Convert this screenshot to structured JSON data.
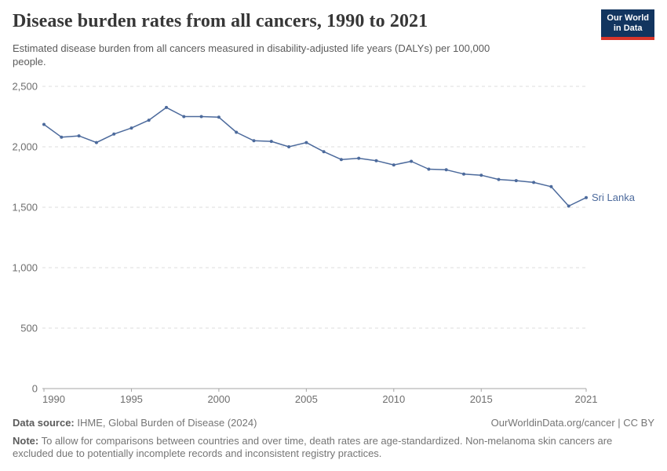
{
  "header": {
    "title": "Disease burden rates from all cancers, 1990 to 2021",
    "subtitle_line1": "Estimated disease burden from all cancers measured in disability-adjusted life years (DALYs) per 100,000",
    "subtitle_line2": "people.",
    "logo": {
      "line1": "Our World",
      "line2": "in Data",
      "bg_color": "#12355f",
      "accent_color": "#d8352a"
    }
  },
  "chart_data": {
    "type": "line",
    "title": "Disease burden rates from all cancers, 1990 to 2021",
    "xlabel": "",
    "ylabel": "DALYs per 100,000 people",
    "x": [
      1990,
      1991,
      1992,
      1993,
      1994,
      1995,
      1996,
      1997,
      1998,
      1999,
      2000,
      2001,
      2002,
      2003,
      2004,
      2005,
      2006,
      2007,
      2008,
      2009,
      2010,
      2011,
      2012,
      2013,
      2014,
      2015,
      2016,
      2017,
      2018,
      2019,
      2020,
      2021
    ],
    "series": [
      {
        "name": "Sri Lanka",
        "color": "#4C6A9C",
        "values": [
          2185,
          2080,
          2090,
          2035,
          2105,
          2155,
          2220,
          2325,
          2250,
          2250,
          2245,
          2120,
          2050,
          2045,
          2000,
          2035,
          1960,
          1895,
          1905,
          1885,
          1850,
          1880,
          1815,
          1810,
          1775,
          1765,
          1730,
          1720,
          1705,
          1670,
          1510,
          1580
        ]
      }
    ],
    "xlim": [
      1990,
      2021
    ],
    "ylim": [
      0,
      2500
    ],
    "x_ticks": {
      "values": [
        1990,
        1995,
        2000,
        2005,
        2010,
        2015,
        2021
      ],
      "labels": [
        "1990",
        "1995",
        "2000",
        "2005",
        "2010",
        "2015",
        "2021"
      ]
    },
    "y_ticks": {
      "values": [
        0,
        500,
        1000,
        1500,
        2000,
        2500
      ],
      "labels": [
        "0",
        "500",
        "1,000",
        "1,500",
        "2,000",
        "2,500"
      ]
    },
    "grid": "horizontal-dashed",
    "legend_position": "end-of-line-label"
  },
  "footer": {
    "datasource_label": "Data source:",
    "datasource_value": " IHME, Global Burden of Disease (2024)",
    "rights": "OurWorldinData.org/cancer | CC BY",
    "note_label": "Note:",
    "note_line1": " To allow for comparisons between countries and over time, death rates are age-standardized. Non-melanoma skin cancers are",
    "note_line2": "excluded due to potentially incomplete records and inconsistent registry practices."
  },
  "colors": {
    "series_blue": "#4C6A9C",
    "gridline": "#dcdcdc",
    "axis": "#a5a5a5",
    "tick_label": "#6e6e6e",
    "title_text": "#373737",
    "muted_text": "#757575"
  }
}
